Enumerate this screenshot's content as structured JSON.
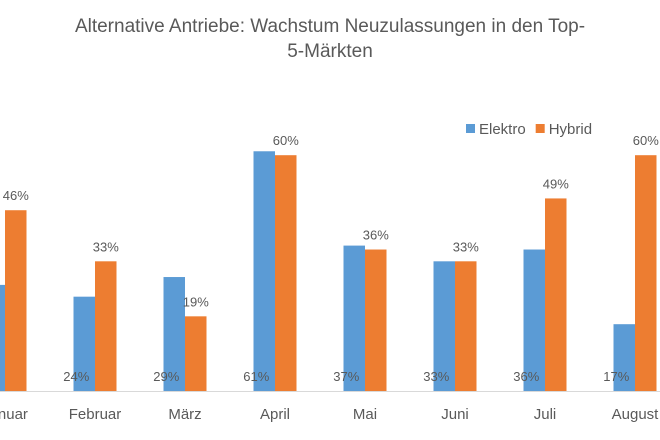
{
  "chart_data": {
    "type": "bar",
    "title_line1": "Alternative Antriebe: Wachstum Neuzulassungen in den Top-",
    "title_line2": "5-Märkten",
    "categories": [
      "Januar",
      "Februar",
      "März",
      "April",
      "Mai",
      "Juni",
      "Juli",
      "August"
    ],
    "series": [
      {
        "name": "Elektro",
        "color": "#5B9BD5",
        "values": [
          27,
          24,
          29,
          61,
          37,
          33,
          36,
          17
        ]
      },
      {
        "name": "Hybrid",
        "color": "#ED7D31",
        "values": [
          46,
          33,
          19,
          60,
          36,
          33,
          49,
          60
        ]
      }
    ],
    "value_suffix": "%",
    "ylim": [
      0,
      65
    ],
    "legend": "top-right",
    "grid": false
  }
}
